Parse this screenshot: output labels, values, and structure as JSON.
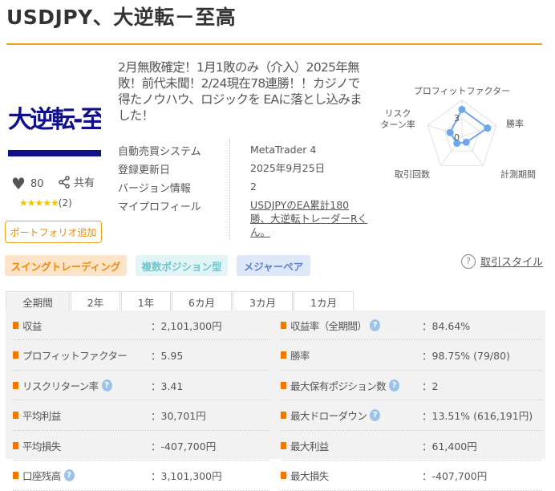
{
  "title": "USDJPY、大逆転－至高",
  "logo_text": "大逆転-至高",
  "description": "2月無敗確定！1月1敗のみ（介入）2025年無敗！前代未聞！2/24現在78連勝！！カジノで得たノウハウ、ロジックを EAに落とし込みました！",
  "info": [
    {
      "label": "自動売買システム",
      "value": "MetaTrader 4"
    },
    {
      "label": "登録更新日",
      "value": "2025年9月25日"
    },
    {
      "label": "バージョン情報",
      "value": "2"
    },
    {
      "label": "マイプロフィール",
      "value": "USDJPYのEA累計180勝、大逆転トレーダーRくん。"
    }
  ],
  "likes": "80",
  "share_label": "共有",
  "rating": {
    "stars": 5,
    "count": "(2)"
  },
  "portfolio_button": "ポートフォリオ追加",
  "tags": [
    {
      "label": "スイングトレーディング",
      "bg": "#fde3c8",
      "color": "#f08a00"
    },
    {
      "label": "複数ポジション型",
      "bg": "#e2f4f6",
      "color": "#6cc6cf"
    },
    {
      "label": "メジャーペア",
      "bg": "#dfe8f8",
      "color": "#5b7fd0"
    }
  ],
  "trade_style_link": "取引スタイル",
  "radar": {
    "axes": [
      "プロフィットファクター",
      "勝率",
      "計測期間",
      "取引回数",
      "リスク\nターン率"
    ],
    "tick_labels": [
      "3",
      "0"
    ],
    "scale_max": 5.5,
    "values": [
      4.1,
      4.1,
      1.1,
      1.3,
      1.9
    ],
    "color": "#6fa8e8"
  },
  "tabs": [
    "全期間",
    "2年",
    "1年",
    "6カ月",
    "3カ月",
    "1カ月"
  ],
  "active_tab": 0,
  "stats_left": [
    {
      "label": "収益",
      "value": "：2,101,300円",
      "help": false
    },
    {
      "label": "プロフィットファクター",
      "value": "：5.95",
      "help": false
    },
    {
      "label": "リスクリターン率",
      "value": "：3.41",
      "help": true
    },
    {
      "label": "平均利益",
      "value": "：30,701円",
      "help": false
    },
    {
      "label": "平均損失",
      "value": "：-407,700円",
      "help": false
    },
    {
      "label": "口座残高",
      "value": "：3,101,300円",
      "help": true
    }
  ],
  "stats_right": [
    {
      "label": "収益率（全期間）",
      "value": "：84.64%",
      "help": true
    },
    {
      "label": "勝率",
      "value": "：98.75% (79/80)",
      "help": false
    },
    {
      "label": "最大保有ポジション数",
      "value": "：2",
      "help": true
    },
    {
      "label": "最大ドローダウン",
      "value": "：13.51% (616,191円)",
      "help": true
    },
    {
      "label": "最大利益",
      "value": "：61,400円",
      "help": false
    },
    {
      "label": "最大損失",
      "value": "：-407,700円",
      "help": false
    }
  ]
}
